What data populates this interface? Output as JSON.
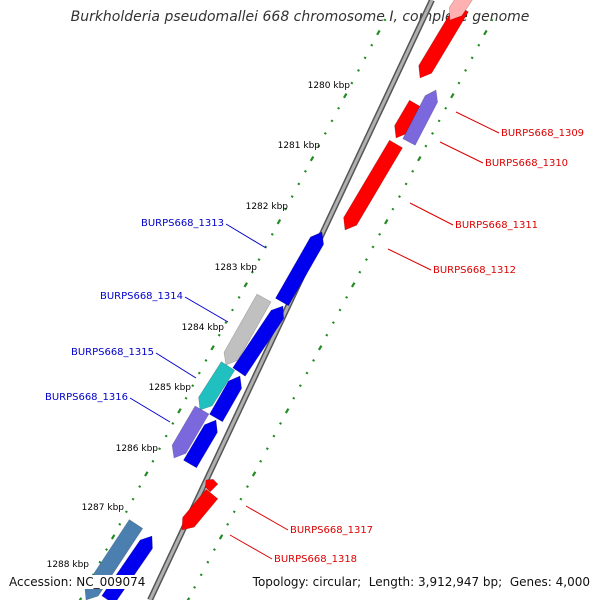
{
  "title": "Burkholderia pseudomallei 668 chromosome I, complete genome",
  "footer": {
    "accession_label": "Accession:",
    "accession": "NC_009074",
    "topology_label": "Topology:",
    "topology": "circular",
    "length_label": "Length:",
    "length": "3,912,947 bp",
    "genes_label": "Genes:",
    "genes": "4,000"
  },
  "colors": {
    "forward_gene": "#0000ee",
    "reverse_gene": "#ff0000",
    "purple_gene": "#7b68dd",
    "gray_gene": "#c0c0c0",
    "cyan_gene": "#20c0c0",
    "steel_gene": "#4a7fb0",
    "tick": "#228b22",
    "backbone": "#808080",
    "forward_label": "#0000cc",
    "reverse_label": "#dd0000"
  },
  "ticks": [
    "1280 kbp",
    "1281 kbp",
    "1282 kbp",
    "1283 kbp",
    "1284 kbp",
    "1285 kbp",
    "1286 kbp",
    "1287 kbp",
    "1288 kbp"
  ],
  "labels_forward": [
    "BURPS668_1313",
    "BURPS668_1314",
    "BURPS668_1315",
    "BURPS668_1316"
  ],
  "labels_reverse": [
    "BURPS668_1309",
    "BURPS668_1310",
    "BURPS668_1311",
    "BURPS668_1312",
    "BURPS668_1317",
    "BURPS668_1318"
  ]
}
